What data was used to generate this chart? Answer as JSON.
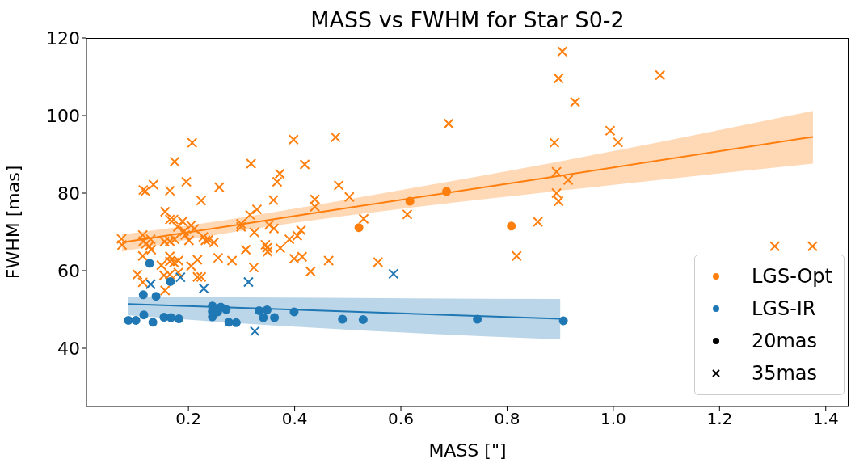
{
  "chart_data": {
    "type": "scatter",
    "title": "MASS vs FWHM for Star S0-2",
    "xlabel": "MASS [\"]",
    "ylabel": "FWHM [mas]",
    "xlim": [
      0.008,
      1.443
    ],
    "ylim": [
      25,
      120
    ],
    "xticks": [
      0.2,
      0.4,
      0.6,
      0.8,
      {
        "value": 1,
        "label": "1.0"
      },
      1.2,
      1.4
    ],
    "yticks": [
      40,
      60,
      80,
      100,
      120
    ],
    "legend": "bottom right",
    "series": [
      {
        "type": "line",
        "color": "#ff7f0e",
        "x": [
          0.075,
          0.3,
          0.5,
          0.9,
          1.376
        ],
        "values": [
          67.3,
          72.0,
          76.2,
          84.5,
          94.5
        ],
        "lower": [
          64.9,
          70.3,
          74.2,
          80.6,
          87.6
        ],
        "upper": [
          69.3,
          73.7,
          78.4,
          88.2,
          101.2
        ]
      },
      {
        "type": "line",
        "color": "#1f77b4",
        "x": [
          0.087,
          0.3,
          0.9
        ],
        "values": [
          51.4,
          50.4,
          47.6
        ],
        "lower": [
          48.5,
          46.4,
          42.3
        ],
        "upper": [
          53.3,
          53.1,
          52.7
        ]
      },
      {
        "name": "LGS-Opt",
        "marker": "circle",
        "color": "#ff7f0e",
        "x": [
          0.521,
          0.617,
          0.686,
          0.808
        ],
        "values": [
          71.1,
          77.9,
          80.4,
          71.5
        ]
      },
      {
        "marker": "cross",
        "color": "#ff7f0e",
        "x": [
          0.207,
          0.174,
          0.318,
          0.115,
          0.119,
          0.134,
          0.165,
          0.196,
          0.258,
          0.224,
          0.156,
          0.165,
          0.172,
          0.189,
          0.18,
          0.205,
          0.211,
          0.192,
          0.194,
          0.201,
          0.074,
          0.075,
          0.114,
          0.115,
          0.12,
          0.129,
          0.126,
          0.13,
          0.155,
          0.165,
          0.174,
          0.228,
          0.232,
          0.238,
          0.248,
          0.299,
          0.299,
          0.316,
          0.329,
          0.324,
          0.114,
          0.149,
          0.165,
          0.165,
          0.173,
          0.181,
          0.205,
          0.217,
          0.256,
          0.282,
          0.308,
          0.323,
          0.104,
          0.114,
          0.154,
          0.165,
          0.181,
          0.217,
          0.224,
          0.156,
          0.398,
          0.477,
          0.419,
          0.372,
          0.367,
          0.483,
          0.36,
          0.438,
          0.438,
          0.503,
          0.53,
          0.612,
          0.352,
          0.361,
          0.412,
          0.405,
          0.39,
          0.373,
          0.345,
          0.348,
          0.349,
          0.399,
          0.414,
          0.464,
          0.43,
          0.557,
          0.904,
          0.897,
          0.928,
          0.69,
          0.889,
          0.994,
          1.009,
          0.893,
          0.915,
          0.893,
          0.897,
          0.858,
          0.818,
          1.088,
          1.304,
          1.375
        ],
        "values": [
          93.0,
          88.1,
          87.6,
          80.8,
          80.5,
          82.2,
          80.6,
          82.9,
          81.5,
          78.1,
          75.2,
          73.2,
          73.2,
          72.7,
          71.3,
          71.7,
          70.8,
          70.2,
          69.2,
          67.8,
          68.2,
          66.6,
          69.2,
          67.6,
          66.9,
          68.1,
          66.3,
          65.4,
          67.5,
          67.6,
          68.1,
          68.7,
          67.8,
          68.0,
          67.3,
          72.1,
          71.3,
          74.4,
          75.8,
          69.9,
          63.8,
          61.4,
          63.7,
          62.4,
          62.1,
          62.6,
          61.2,
          62.8,
          63.3,
          62.6,
          65.4,
          60.8,
          59.0,
          57.0,
          58.8,
          59.0,
          59.5,
          58.4,
          58.4,
          54.9,
          93.8,
          94.4,
          87.4,
          85.0,
          82.9,
          82.0,
          78.2,
          78.4,
          76.5,
          79.0,
          73.4,
          74.5,
          71.8,
          70.9,
          70.4,
          69.0,
          68.1,
          65.8,
          66.7,
          65.9,
          64.9,
          63.1,
          63.6,
          62.6,
          59.8,
          62.2,
          116.5,
          109.6,
          103.5,
          97.9,
          93.0,
          96.1,
          93.1,
          85.5,
          83.4,
          80.0,
          77.9,
          72.6,
          63.8,
          110.4,
          66.3,
          66.3
        ]
      },
      {
        "name": "LGS-IR",
        "marker": "circle",
        "color": "#1f77b4",
        "x": [
          0.127,
          0.166,
          0.115,
          0.139,
          0.087,
          0.101,
          0.116,
          0.133,
          0.154,
          0.167,
          0.182,
          0.245,
          0.245,
          0.245,
          0.255,
          0.261,
          0.271,
          0.276,
          0.29,
          0.333,
          0.348,
          0.341,
          0.362,
          0.399,
          0.49,
          0.529,
          0.744,
          0.906
        ],
        "values": [
          61.9,
          57.2,
          53.8,
          53.4,
          47.2,
          47.2,
          48.6,
          46.7,
          48.0,
          47.9,
          47.6,
          50.9,
          49.5,
          48.1,
          49.4,
          50.6,
          50.0,
          46.7,
          46.6,
          49.7,
          49.9,
          47.9,
          47.9,
          49.4,
          47.5,
          47.4,
          47.5,
          47.1
        ]
      },
      {
        "marker": "cross",
        "color": "#1f77b4",
        "x": [
          0.129,
          0.185,
          0.229,
          0.313,
          0.325,
          0.586
        ],
        "values": [
          56.5,
          58.3,
          55.4,
          57.1,
          44.4,
          59.2
        ]
      },
      {
        "name": "20mas",
        "marker": "circle",
        "color": "#000000"
      },
      {
        "name": "35mas",
        "marker": "cross",
        "color": "#000000"
      }
    ]
  }
}
